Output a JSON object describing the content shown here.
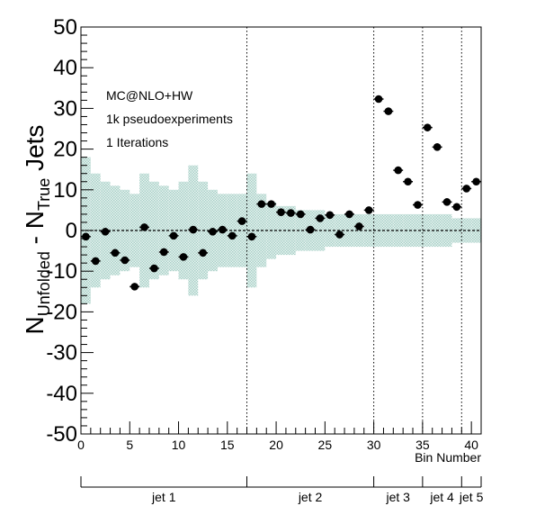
{
  "chart_data": {
    "type": "scatter",
    "ylabel_main": "N",
    "ylabel_sub1": "Unfolded",
    "ylabel_mid": " - N",
    "ylabel_sub2": "True",
    "ylabel_end": " Jets",
    "xlabel": "Bin Number",
    "xlim": [
      0,
      41
    ],
    "ylim": [
      -50,
      50
    ],
    "x_ticks": [
      0,
      5,
      10,
      15,
      20,
      25,
      30,
      35,
      40
    ],
    "y_ticks": [
      -50,
      -40,
      -30,
      -20,
      -10,
      0,
      10,
      20,
      30,
      40,
      50
    ],
    "annotations": [
      "MC@NLO+HW",
      "1k pseudoexperiments",
      "1 Iterations"
    ],
    "separators": [
      17,
      30,
      35,
      39
    ],
    "groups": [
      {
        "label": "jet 1",
        "start": 0,
        "end": 17
      },
      {
        "label": "jet 2",
        "start": 17,
        "end": 30
      },
      {
        "label": "jet 3",
        "start": 30,
        "end": 35
      },
      {
        "label": "jet 4",
        "start": 35,
        "end": 39
      },
      {
        "label": "jet 5",
        "start": 39,
        "end": 41
      }
    ],
    "band_color": "#a8d0c8",
    "band_halfwidth": [
      18,
      14,
      12,
      11,
      10,
      9,
      14,
      12,
      11,
      10,
      12,
      16,
      12,
      10,
      9,
      9,
      9,
      14,
      9,
      7,
      6,
      6,
      5,
      5,
      5,
      4,
      4,
      4,
      4,
      4,
      4,
      4,
      4,
      4,
      4,
      4,
      4,
      4,
      3,
      3,
      3
    ],
    "points": [
      {
        "x": 0.5,
        "y": -1.5
      },
      {
        "x": 1.5,
        "y": -7.5
      },
      {
        "x": 2.5,
        "y": -0.3
      },
      {
        "x": 3.5,
        "y": -5.5
      },
      {
        "x": 4.5,
        "y": -7.3
      },
      {
        "x": 5.5,
        "y": -13.8
      },
      {
        "x": 6.5,
        "y": 0.8
      },
      {
        "x": 7.5,
        "y": -9.3
      },
      {
        "x": 8.5,
        "y": -5.3
      },
      {
        "x": 9.5,
        "y": -1.3
      },
      {
        "x": 10.5,
        "y": -6.5
      },
      {
        "x": 11.5,
        "y": 0.2
      },
      {
        "x": 12.5,
        "y": -5.5
      },
      {
        "x": 13.5,
        "y": -0.3
      },
      {
        "x": 14.5,
        "y": 0.2
      },
      {
        "x": 15.5,
        "y": -1.3
      },
      {
        "x": 16.5,
        "y": 2.3
      },
      {
        "x": 17.5,
        "y": -1.5
      },
      {
        "x": 18.5,
        "y": 6.5
      },
      {
        "x": 19.5,
        "y": 6.5
      },
      {
        "x": 20.5,
        "y": 4.5
      },
      {
        "x": 21.5,
        "y": 4.3
      },
      {
        "x": 22.5,
        "y": 4.0
      },
      {
        "x": 23.5,
        "y": 0.2
      },
      {
        "x": 24.5,
        "y": 3.0
      },
      {
        "x": 25.5,
        "y": 3.8
      },
      {
        "x": 26.5,
        "y": -1.0
      },
      {
        "x": 27.5,
        "y": 4.0
      },
      {
        "x": 28.5,
        "y": 1.0
      },
      {
        "x": 29.5,
        "y": 5.0
      },
      {
        "x": 30.5,
        "y": 32.3
      },
      {
        "x": 31.5,
        "y": 29.3
      },
      {
        "x": 32.5,
        "y": 14.8
      },
      {
        "x": 33.5,
        "y": 12.0
      },
      {
        "x": 34.5,
        "y": 6.3
      },
      {
        "x": 35.5,
        "y": 25.3
      },
      {
        "x": 36.5,
        "y": 20.5
      },
      {
        "x": 37.5,
        "y": 7.0
      },
      {
        "x": 38.5,
        "y": 5.8
      },
      {
        "x": 39.5,
        "y": 10.3
      },
      {
        "x": 40.5,
        "y": 12.0
      }
    ]
  }
}
